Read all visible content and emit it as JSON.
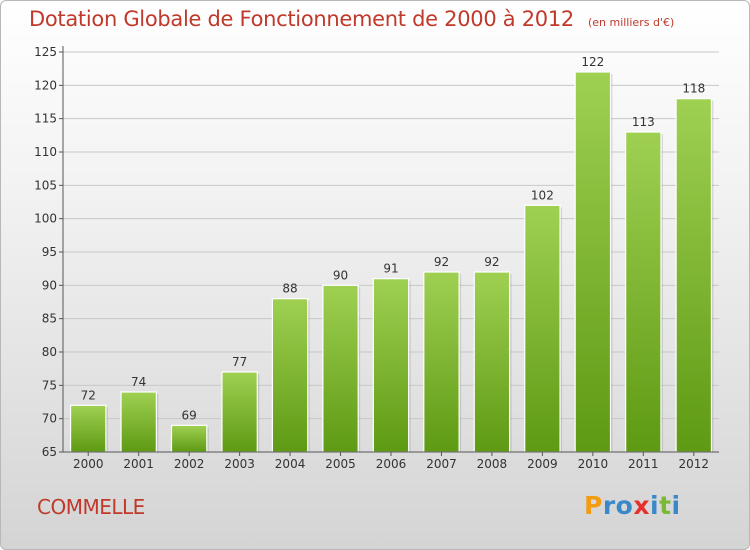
{
  "colors": {
    "bar_light": "#9fd052",
    "bar_dark": "#5e9a13",
    "title": "#c0392b",
    "grid": "#c8c8c8",
    "axis": "#555555",
    "label": "#333333"
  },
  "brand": {
    "letters": [
      {
        "char": "P",
        "color": "#f39c12"
      },
      {
        "char": "r",
        "color": "#3a88c9"
      },
      {
        "char": "o",
        "color": "#3a88c9"
      },
      {
        "char": "x",
        "color": "#e6312f"
      },
      {
        "char": "i",
        "color": "#3a88c9"
      },
      {
        "char": "t",
        "color": "#79b933"
      },
      {
        "char": "i",
        "color": "#3a88c9"
      }
    ]
  },
  "chart_data": {
    "type": "bar",
    "title": "Dotation Globale de Fonctionnement de 2000 à 2012",
    "subtitle": "(en milliers d'€)",
    "location": "COMMELLE",
    "categories": [
      "2000",
      "2001",
      "2002",
      "2003",
      "2004",
      "2005",
      "2006",
      "2007",
      "2008",
      "2009",
      "2010",
      "2011",
      "2012"
    ],
    "values": [
      72,
      74,
      69,
      77,
      88,
      90,
      91,
      92,
      92,
      102,
      122,
      113,
      118
    ],
    "data_labels": [
      "72",
      "74",
      "69",
      "77",
      "88",
      "90",
      "91",
      "92",
      "92",
      "102",
      "122",
      "113",
      "118"
    ],
    "ylim": [
      65,
      125
    ],
    "yticks": [
      65,
      70,
      75,
      80,
      85,
      90,
      95,
      100,
      105,
      110,
      115,
      120,
      125
    ],
    "grid": true,
    "xlabel": "",
    "ylabel": ""
  }
}
